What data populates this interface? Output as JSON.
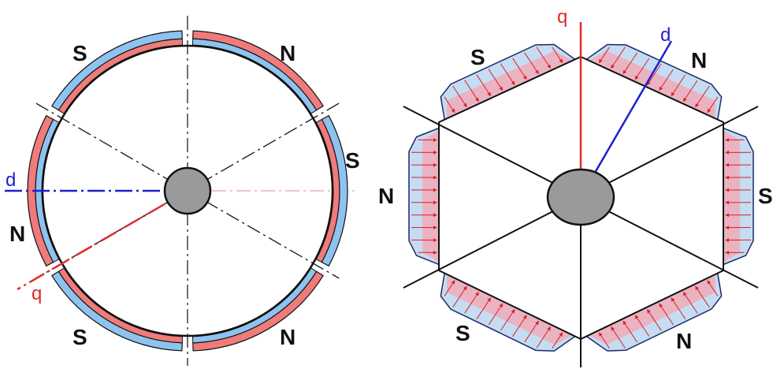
{
  "left_diagram": {
    "pole_labels": [
      "S",
      "N",
      "S",
      "N",
      "S",
      "N"
    ],
    "d_axis_label": "d",
    "q_axis_label": "q"
  },
  "right_diagram": {
    "pole_labels": [
      "S",
      "N",
      "S",
      "N",
      "S",
      "N"
    ],
    "d_axis_label": "d",
    "q_axis_label": "q"
  },
  "colors": {
    "magnet_blue": "#8fc3ef",
    "magnet_red": "#ef7b7b",
    "shaft": "#9a9a9a",
    "d_axis": "#1f1fd0",
    "q_axis": "#e02a2a",
    "outline": "#111111",
    "field_red": "#f6a6b0",
    "field_blue": "#c5dcf2"
  }
}
